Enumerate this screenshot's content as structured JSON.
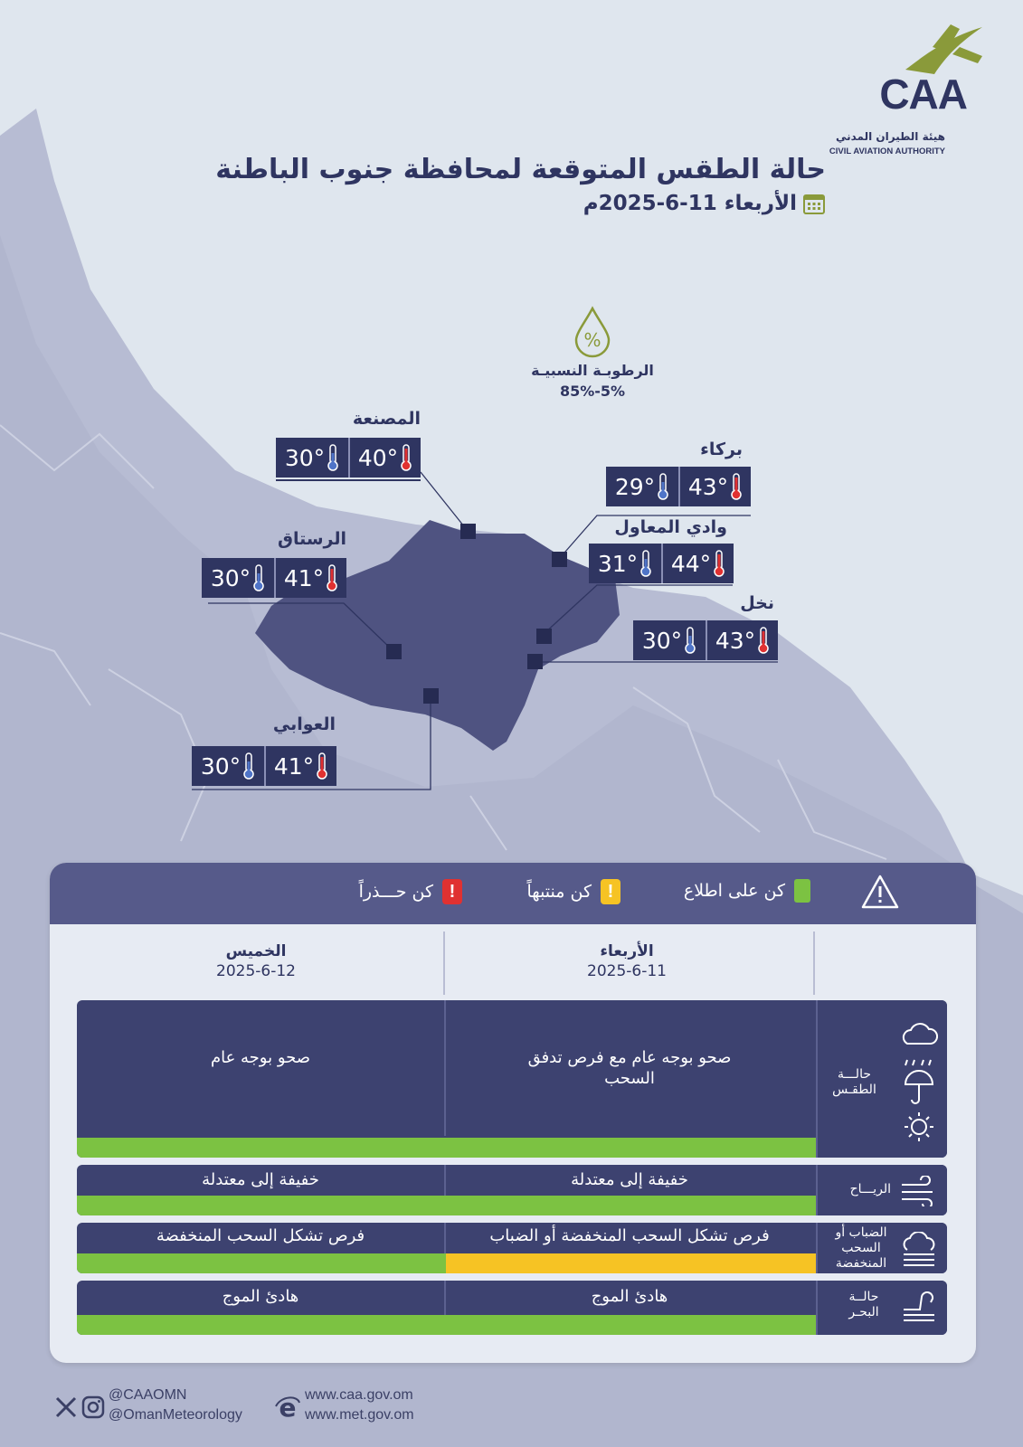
{
  "logo": {
    "acronym": "CAA",
    "arabic_name": "هيئة الطيران المدني",
    "english_name": "CIVIL AVIATION AUTHORITY"
  },
  "header": {
    "title": "حالة الطقس المتوقعة لمحافظة جنوب الباطنة",
    "date": "الأربعاء 11-6-2025م",
    "calendar_icon": "calendar-icon"
  },
  "humidity": {
    "label": "الرطوبـة النسبيـة",
    "value": "85%-5%",
    "icon": "humidity-drop-icon"
  },
  "cities": [
    {
      "name": "المصنعة",
      "max": "40°",
      "min": "30°"
    },
    {
      "name": "بركاء",
      "max": "43°",
      "min": "29°"
    },
    {
      "name": "الرستاق",
      "max": "41°",
      "min": "30°"
    },
    {
      "name": "وادي المعاول",
      "max": "44°",
      "min": "31°"
    },
    {
      "name": "نخل",
      "max": "43°",
      "min": "30°"
    },
    {
      "name": "العوابي",
      "max": "41°",
      "min": "30°"
    }
  ],
  "legend": {
    "inform": "كن على اطلاع",
    "alert": "كن منتبهاً",
    "caution": "كن حـــذراً",
    "colors": {
      "green": "#7cc242",
      "yellow": "#f6c324",
      "red": "#e03131"
    }
  },
  "days": [
    {
      "name": "الأربعاء",
      "date": "2025-6-11"
    },
    {
      "name": "الخميس",
      "date": "2025-6-12"
    }
  ],
  "rows": [
    {
      "label": "حالـــة الطقـس",
      "day1": "صحو بوجه عام مع فرص تدفق السحب",
      "day2": "صحو بوجه عام",
      "day1_status": "green",
      "day2_status": "green"
    },
    {
      "label": "الريـــاح",
      "day1": "خفيفة إلى معتدلة",
      "day2": "خفيفة إلى معتدلة",
      "day1_status": "green",
      "day2_status": "green"
    },
    {
      "label": "الضباب أو السحب المنخفضة",
      "day1": "فرص تشكل السحب المنخفضة أو الضباب",
      "day2": "فرص تشكل السحب المنخفضة",
      "day1_status": "yellow",
      "day2_status": "green"
    },
    {
      "label": "حالــة البحـر",
      "day1": "هادئ الموج",
      "day2": "هادئ الموج",
      "day1_status": "green",
      "day2_status": "green"
    }
  ],
  "footer": {
    "twitter": "@CAAOMN",
    "instagram": "@OmanMeteorology",
    "site1": "www.caa.gov.om",
    "site2": "www.met.gov.om"
  }
}
